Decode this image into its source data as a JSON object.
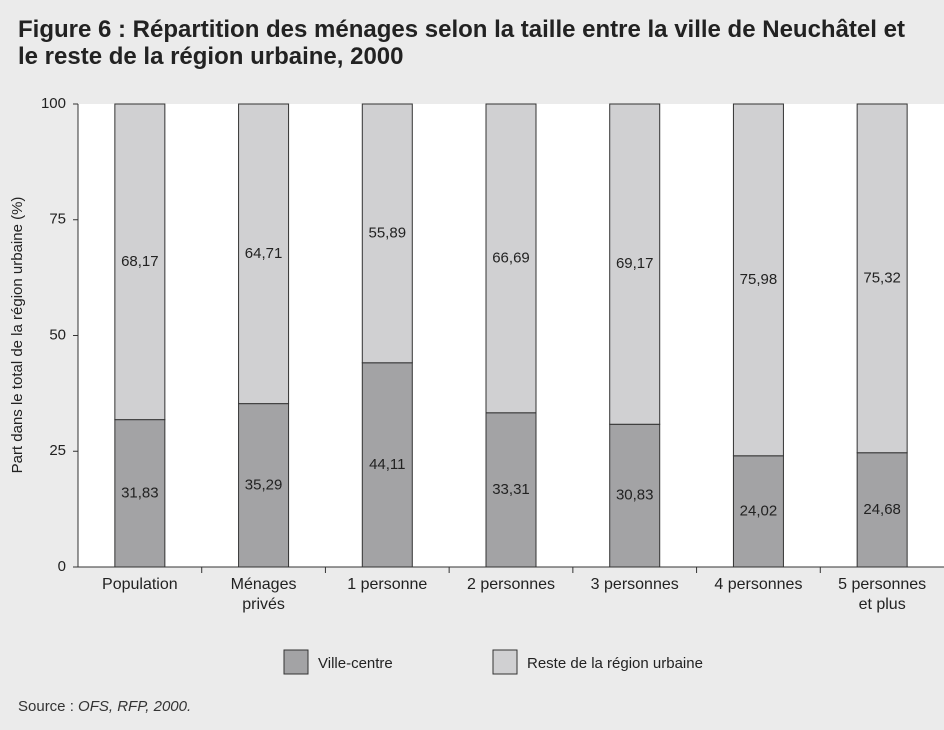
{
  "chart_data": {
    "type": "stacked_bar",
    "title": "Figure 6 : Répartition des ménages selon la taille entre la ville de Neuchâtel et le reste de la région urbaine, 2000",
    "y_label": "Part dans le total de la région urbaine (%)",
    "categories": [
      "Population",
      "Ménages\nprivés",
      "1 personne",
      "2 personnes",
      "3 personnes",
      "4 personnes",
      "5 personnes\net plus"
    ],
    "series": [
      {
        "name": "Ville-centre",
        "color": "#a3a3a5",
        "values": [
          31.83,
          35.29,
          44.11,
          33.31,
          30.83,
          24.02,
          24.68
        ],
        "value_labels": [
          "31,83",
          "35,29",
          "44,11",
          "33,31",
          "30,83",
          "24,02",
          "24,68"
        ]
      },
      {
        "name": "Reste de la région urbaine",
        "color": "#d0d0d2",
        "values": [
          68.17,
          64.71,
          55.89,
          66.69,
          69.17,
          75.98,
          75.32
        ],
        "value_labels": [
          "68,17",
          "64,71",
          "55,89",
          "66,69",
          "69,17",
          "75,98",
          "75,32"
        ]
      }
    ],
    "ylim": [
      0,
      100
    ],
    "yticks": [
      0,
      25,
      50,
      75,
      100
    ],
    "source_label": "Source :",
    "source": "OFS, RFP, 2000."
  }
}
